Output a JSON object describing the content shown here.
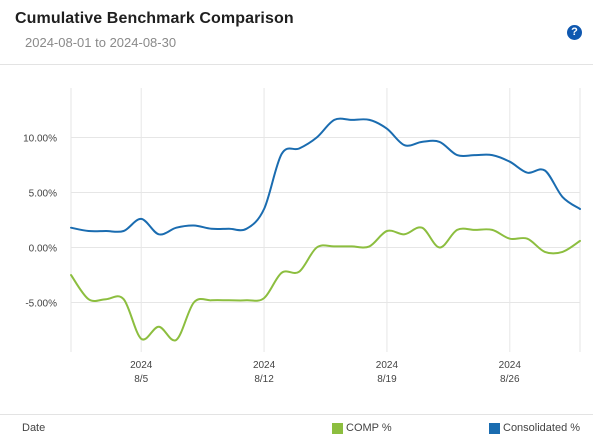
{
  "header": {
    "title": "Cumulative Benchmark Comparison",
    "subtitle": "2024-08-01 to 2024-08-30",
    "help_glyph": "?"
  },
  "footer": {
    "x_label": "Date"
  },
  "colors": {
    "comp": "#8cbe3f",
    "consolidated": "#1a6cb0",
    "grid": "#e6e6e6",
    "help": "#0f58b0"
  },
  "chart_data": {
    "type": "line",
    "xlabel": "Date",
    "ylabel": "",
    "xlim": [
      "2024-08-01",
      "2024-08-30"
    ],
    "ylim": [
      -9.5,
      14.5
    ],
    "y_ticks": [
      "10.00%",
      "5.00%",
      "0.00%",
      "-5.00%"
    ],
    "y_tick_values": [
      10,
      5,
      0,
      -5
    ],
    "x_ticks": [
      {
        "date": "2024-08-05",
        "year": "2024",
        "label": "8/5"
      },
      {
        "date": "2024-08-12",
        "year": "2024",
        "label": "8/12"
      },
      {
        "date": "2024-08-19",
        "year": "2024",
        "label": "8/19"
      },
      {
        "date": "2024-08-26",
        "year": "2024",
        "label": "8/26"
      }
    ],
    "grid": true,
    "legend_position": "bottom-right",
    "x": [
      "2024-08-01",
      "2024-08-02",
      "2024-08-03",
      "2024-08-04",
      "2024-08-05",
      "2024-08-06",
      "2024-08-07",
      "2024-08-08",
      "2024-08-09",
      "2024-08-10",
      "2024-08-11",
      "2024-08-12",
      "2024-08-13",
      "2024-08-14",
      "2024-08-15",
      "2024-08-16",
      "2024-08-17",
      "2024-08-18",
      "2024-08-19",
      "2024-08-20",
      "2024-08-21",
      "2024-08-22",
      "2024-08-23",
      "2024-08-24",
      "2024-08-25",
      "2024-08-26",
      "2024-08-27",
      "2024-08-28",
      "2024-08-29",
      "2024-08-30"
    ],
    "series": [
      {
        "name": "COMP %",
        "values": [
          -2.5,
          -4.7,
          -4.7,
          -4.7,
          -8.3,
          -7.2,
          -8.4,
          -5.0,
          -4.8,
          -4.8,
          -4.8,
          -4.6,
          -2.3,
          -2.2,
          0.0,
          0.1,
          0.1,
          0.1,
          1.5,
          1.2,
          1.8,
          0.0,
          1.6,
          1.6,
          1.6,
          0.8,
          0.8,
          -0.4,
          -0.4,
          0.6
        ]
      },
      {
        "name": "Consolidated %",
        "values": [
          1.8,
          1.5,
          1.5,
          1.5,
          2.6,
          1.2,
          1.8,
          2.0,
          1.7,
          1.7,
          1.7,
          3.5,
          8.5,
          9.0,
          10.0,
          11.6,
          11.6,
          11.6,
          10.8,
          9.3,
          9.6,
          9.6,
          8.4,
          8.4,
          8.4,
          7.8,
          6.8,
          7.0,
          4.6,
          3.5
        ]
      }
    ]
  }
}
